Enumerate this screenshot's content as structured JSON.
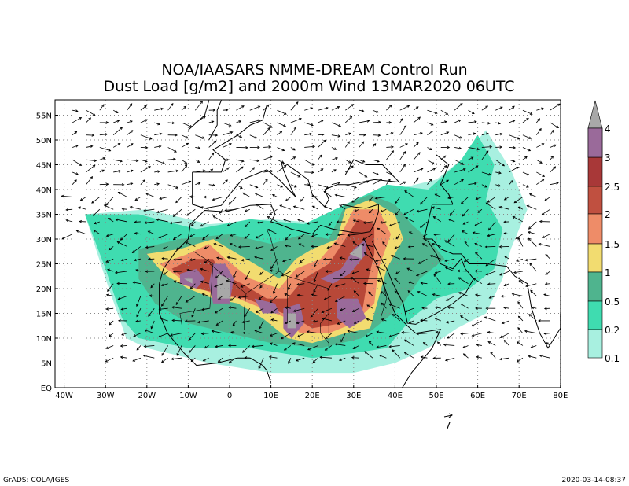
{
  "header": {
    "title_line1": "NOA/IAASARS NMME-DREAM Control Run",
    "title_line2": "Dust Load [g/m2] and 2000m Wind 13MAR2020 06UTC"
  },
  "map": {
    "lat_labels": [
      "55N",
      "50N",
      "45N",
      "40N",
      "35N",
      "30N",
      "25N",
      "20N",
      "15N",
      "10N",
      "5N",
      "EQ"
    ],
    "lon_labels": [
      "40W",
      "30W",
      "20W",
      "10W",
      "0",
      "10E",
      "20E",
      "30E",
      "40E",
      "50E",
      "60E",
      "70E",
      "80E"
    ]
  },
  "colorbar": {
    "labels": [
      "4",
      "3",
      "2.5",
      "2",
      "1.5",
      "1",
      "0.5",
      "0.2",
      "0.1"
    ]
  },
  "wind_reference": "7",
  "footer": {
    "left": "GrADS: COLA/IGES",
    "right": "2020-03-14-08:37"
  }
}
